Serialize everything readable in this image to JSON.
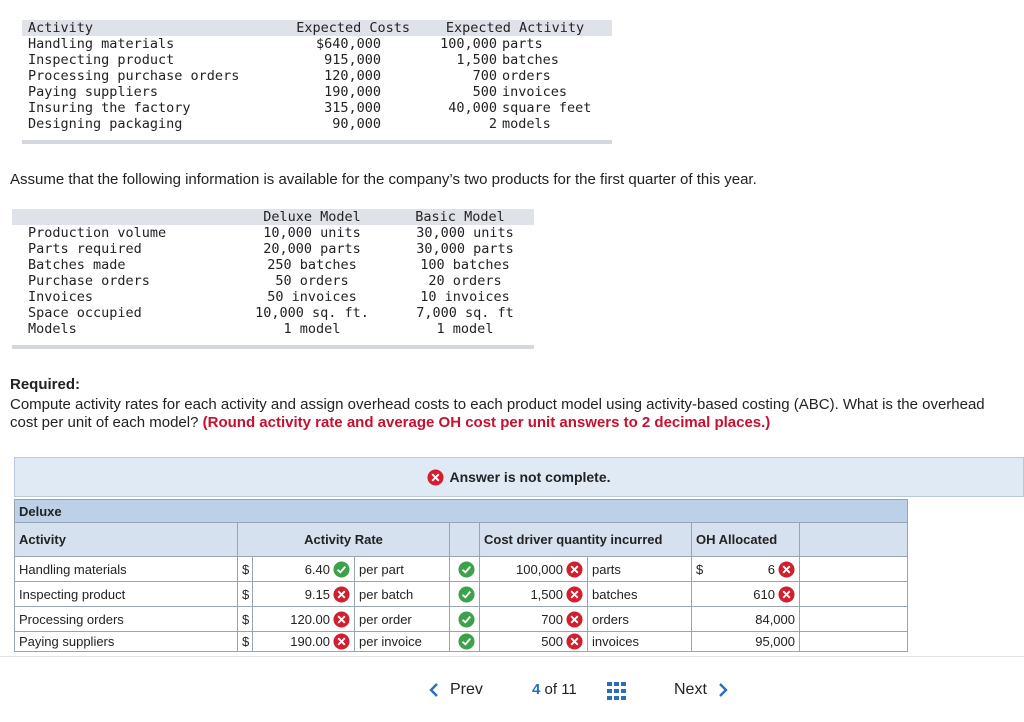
{
  "cost_table": {
    "headers": [
      "Activity",
      "Expected Costs",
      "Expected Activity"
    ],
    "rows": [
      {
        "activity": "Handling materials",
        "cost": "$640,000",
        "quantity": "100,000",
        "unit": "parts"
      },
      {
        "activity": "Inspecting product",
        "cost": "915,000",
        "quantity": "1,500",
        "unit": "batches"
      },
      {
        "activity": "Processing purchase orders",
        "cost": "120,000",
        "quantity": "700",
        "unit": "orders"
      },
      {
        "activity": "Paying suppliers",
        "cost": "190,000",
        "quantity": "500",
        "unit": "invoices"
      },
      {
        "activity": "Insuring the factory",
        "cost": "315,000",
        "quantity": "40,000",
        "unit": "square feet"
      },
      {
        "activity": "Designing packaging",
        "cost": "90,000",
        "quantity": "2",
        "unit": "models"
      }
    ]
  },
  "intro": "Assume that the following information is available for the company’s two products for the first quarter of this year.",
  "product_table": {
    "headers": [
      "Deluxe Model",
      "Basic Model"
    ],
    "rows": [
      {
        "label": "Production volume",
        "deluxe": "10,000 units",
        "basic": "30,000 units"
      },
      {
        "label": "Parts required",
        "deluxe": "20,000 parts",
        "basic": "30,000 parts"
      },
      {
        "label": "Batches made",
        "deluxe": "250 batches",
        "basic": "100 batches"
      },
      {
        "label": "Purchase orders",
        "deluxe": "50 orders",
        "basic": "20 orders"
      },
      {
        "label": "Invoices",
        "deluxe": "50 invoices",
        "basic": "10 invoices"
      },
      {
        "label": "Space occupied",
        "deluxe": "10,000 sq. ft.",
        "basic": "7,000 sq. ft"
      },
      {
        "label": "Models",
        "deluxe": "1 model",
        "basic": "1 model"
      }
    ]
  },
  "required": {
    "heading": "Required:",
    "instruction": "Compute activity rates for each activity and assign overhead costs to each product model using activity-based costing (ABC). What is the overhead cost per unit of each model?",
    "note": "(Round activity rate and average OH cost per unit answers to 2 decimal places.)"
  },
  "answer": {
    "status": "Answer is not complete.",
    "section": "Deluxe",
    "headers": [
      "Activity",
      "Activity Rate",
      "Cost driver quantity incurred",
      "OH Allocated"
    ],
    "rows": [
      {
        "activity": "Handling materials",
        "rate_currency": "$",
        "rate": "6.40",
        "rate_ok": true,
        "rate_unit": "per part",
        "unit_ok": true,
        "quantity": "100,000",
        "quantity_ok": false,
        "quantity_unit": "parts",
        "oh_currency": "$",
        "oh": "6",
        "oh_ok": false
      },
      {
        "activity": "Inspecting product",
        "rate_currency": "$",
        "rate": "9.15",
        "rate_ok": false,
        "rate_unit": "per batch",
        "unit_ok": true,
        "quantity": "1,500",
        "quantity_ok": false,
        "quantity_unit": "batches",
        "oh": "610",
        "oh_ok": false
      },
      {
        "activity": "Processing orders",
        "rate_currency": "$",
        "rate": "120.00",
        "rate_ok": false,
        "rate_unit": "per order",
        "unit_ok": true,
        "quantity": "700",
        "quantity_ok": false,
        "quantity_unit": "orders",
        "oh": "84,000"
      },
      {
        "activity": "Paying suppliers",
        "rate_currency": "$",
        "rate": "190.00",
        "rate_ok": false,
        "rate_unit": "per invoice",
        "unit_ok": true,
        "quantity": "500",
        "quantity_ok": false,
        "quantity_unit": "invoices",
        "oh": "95,000"
      }
    ]
  },
  "nav": {
    "prev": "Prev",
    "page": "4",
    "total": "of 11",
    "next": "Next"
  }
}
